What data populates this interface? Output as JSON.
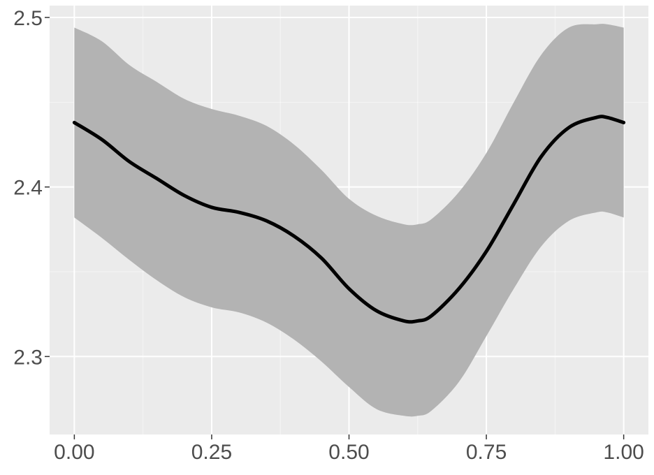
{
  "chart_data": {
    "type": "line",
    "title": "",
    "xlabel": "",
    "ylabel": "",
    "xlim": [
      -0.045,
      1.045
    ],
    "ylim": [
      2.254,
      2.507
    ],
    "grid": true,
    "legend": "none",
    "x_ticks": [
      {
        "value": 0.0,
        "label": "0.00"
      },
      {
        "value": 0.25,
        "label": "0.25"
      },
      {
        "value": 0.5,
        "label": "0.50"
      },
      {
        "value": 0.75,
        "label": "0.75"
      },
      {
        "value": 1.0,
        "label": "1.00"
      }
    ],
    "y_ticks": [
      {
        "value": 2.3,
        "label": "2.3"
      },
      {
        "value": 2.4,
        "label": "2.4"
      },
      {
        "value": 2.5,
        "label": "2.5"
      }
    ],
    "series": [
      {
        "x": [
          0.0,
          0.05,
          0.1,
          0.15,
          0.2,
          0.25,
          0.3,
          0.35,
          0.4,
          0.45,
          0.5,
          0.55,
          0.6,
          0.625,
          0.65,
          0.7,
          0.75,
          0.8,
          0.85,
          0.9,
          0.95,
          0.97,
          1.0
        ],
        "y": [
          2.438,
          2.428,
          2.415,
          2.405,
          2.395,
          2.388,
          2.385,
          2.38,
          2.371,
          2.358,
          2.34,
          2.327,
          2.321,
          2.321,
          2.324,
          2.34,
          2.362,
          2.39,
          2.418,
          2.435,
          2.441,
          2.441,
          2.438
        ],
        "lower": [
          2.382,
          2.37,
          2.357,
          2.345,
          2.335,
          2.329,
          2.326,
          2.32,
          2.31,
          2.297,
          2.282,
          2.269,
          2.265,
          2.265,
          2.268,
          2.285,
          2.312,
          2.34,
          2.365,
          2.38,
          2.385,
          2.385,
          2.382
        ],
        "upper": [
          2.494,
          2.486,
          2.472,
          2.462,
          2.452,
          2.446,
          2.442,
          2.436,
          2.425,
          2.41,
          2.393,
          2.383,
          2.378,
          2.378,
          2.381,
          2.397,
          2.42,
          2.45,
          2.478,
          2.494,
          2.496,
          2.496,
          2.494
        ]
      }
    ],
    "colors": {
      "panel_bg": "#ebebeb",
      "grid_major": "#ffffff",
      "ribbon": "#b3b3b3",
      "line": "#000000",
      "tick_text": "#4d4d4d",
      "tick_mark": "#333333"
    }
  }
}
